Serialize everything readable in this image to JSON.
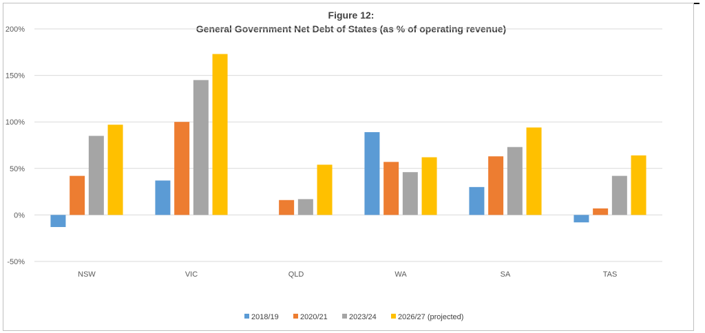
{
  "chart_data": {
    "type": "bar",
    "title_line1": "Figure 12:",
    "title_line2": "General Government Net Debt of States (as % of operating revenue)",
    "xlabel": "",
    "ylabel": "",
    "categories": [
      "NSW",
      "VIC",
      "QLD",
      "WA",
      "SA",
      "TAS"
    ],
    "ylim": [
      -50,
      200
    ],
    "y_ticks": [
      -50,
      0,
      50,
      100,
      150,
      200
    ],
    "y_tick_labels": [
      "-50%",
      "0%",
      "50%",
      "100%",
      "150%",
      "200%"
    ],
    "grid": true,
    "legend_position": "bottom",
    "series": [
      {
        "name": "2018/19",
        "color": "#5b9bd5",
        "values": [
          -13,
          37,
          0,
          89,
          30,
          -8
        ]
      },
      {
        "name": "2020/21",
        "color": "#ed7d31",
        "values": [
          42,
          100,
          16,
          57,
          63,
          7
        ]
      },
      {
        "name": "2023/24",
        "color": "#a5a5a5",
        "values": [
          85,
          145,
          17,
          46,
          73,
          42
        ]
      },
      {
        "name": "2026/27 (projected)",
        "color": "#ffc000",
        "values": [
          97,
          173,
          54,
          62,
          94,
          64
        ]
      }
    ]
  }
}
